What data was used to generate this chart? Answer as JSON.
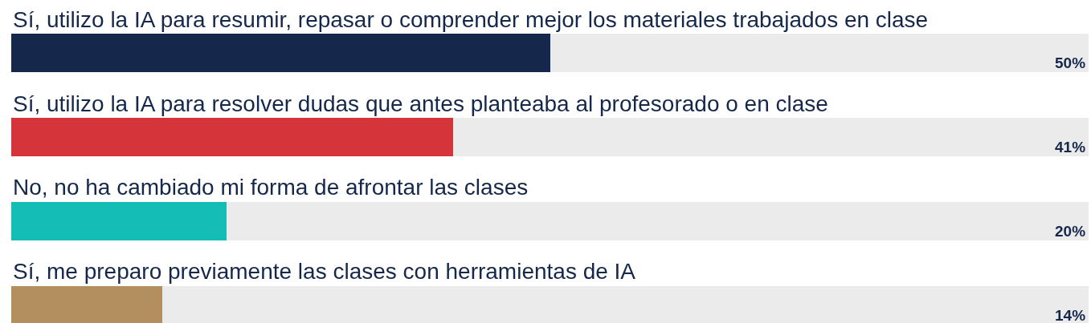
{
  "chart_data": {
    "type": "bar",
    "orientation": "horizontal",
    "categories": [
      "Sí, utilizo la IA para resumir, repasar o comprender mejor los materiales trabajados en clase",
      "Sí, utilizo la IA para resolver dudas que antes planteaba al profesorado o en clase",
      "No, no ha cambiado mi forma de afrontar las clases",
      "Sí, me preparo previamente las clases con herramientas de IA"
    ],
    "values": [
      50,
      41,
      20,
      14
    ],
    "colors": [
      "#15284b",
      "#d5343a",
      "#14bdb6",
      "#b38f5f"
    ],
    "value_labels": [
      "50%",
      "41%",
      "20%",
      "14%"
    ],
    "xlim": [
      0,
      100
    ],
    "tick_labels": "y"
  }
}
